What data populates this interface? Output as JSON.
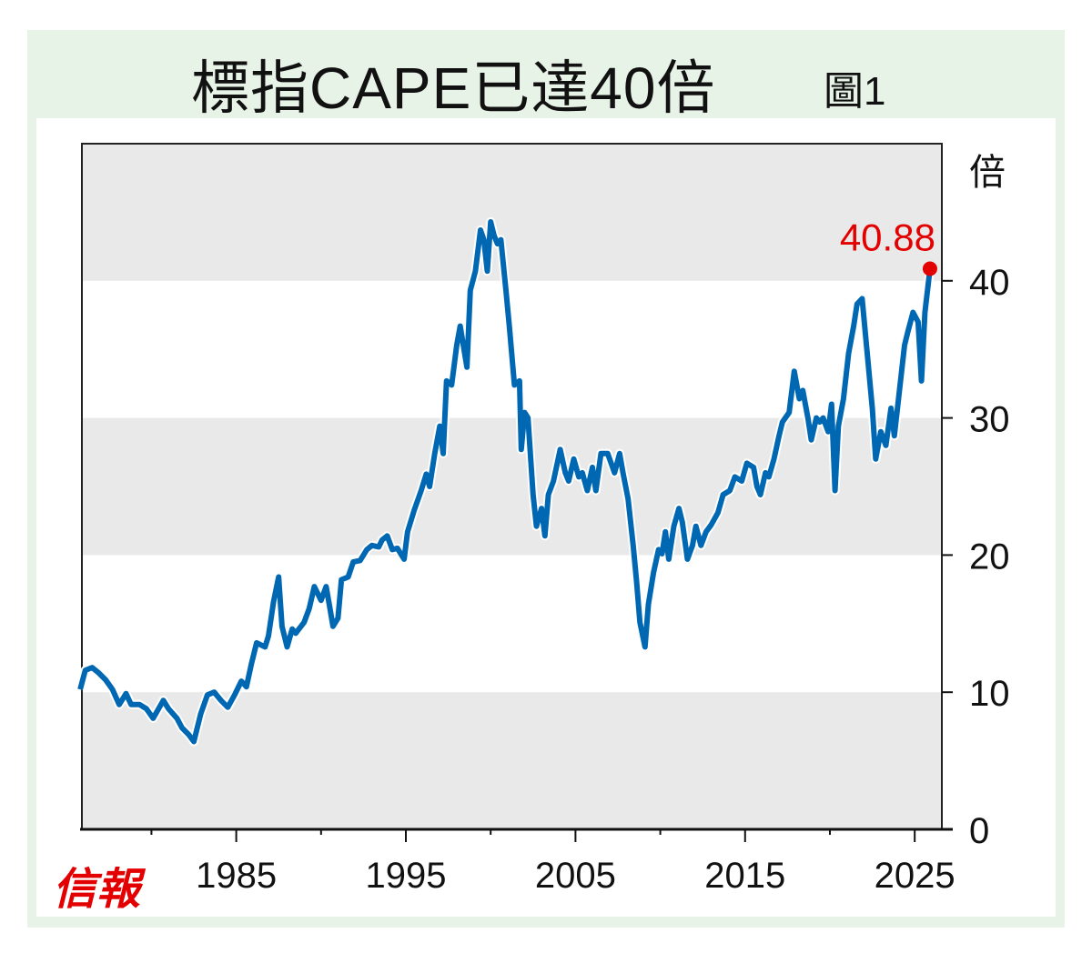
{
  "header": {
    "title": "標指CAPE已達40倍",
    "figure_label": "圖1"
  },
  "logo_text": "信報",
  "chart_data": {
    "type": "line",
    "title": "標指CAPE已達40倍",
    "ylabel": "倍",
    "xlabel": "",
    "xlim": [
      1975.9,
      2026.6
    ],
    "ylim": [
      0,
      50
    ],
    "x_ticks": [
      1985,
      1995,
      2005,
      2015,
      2025
    ],
    "x_tick_labels": [
      "1985",
      "1995",
      "2005",
      "2015",
      "2025"
    ],
    "x_minor_ticks": [
      1980,
      1990,
      2000,
      2010,
      2020
    ],
    "y_ticks": [
      0,
      10,
      20,
      30,
      40
    ],
    "y_tick_labels": [
      "0",
      "10",
      "20",
      "30",
      "40"
    ],
    "bands": [
      [
        0,
        10
      ],
      [
        20,
        30
      ],
      [
        40,
        50
      ]
    ],
    "colors": {
      "line": "#0068b3",
      "highlight": "#e30000",
      "band": "#e8e9e8"
    },
    "annotation": {
      "text": "40.88",
      "x": 2025.9,
      "y": 40.88
    },
    "series": [
      {
        "name": "CAPE",
        "x": [
          1975.8,
          1976.1,
          1976.5,
          1976.9,
          1977.3,
          1977.7,
          1978.1,
          1978.5,
          1978.8,
          1979.3,
          1979.7,
          1980.1,
          1980.7,
          1981.0,
          1981.5,
          1981.8,
          1982.2,
          1982.5,
          1982.9,
          1983.3,
          1983.7,
          1984.1,
          1984.5,
          1984.9,
          1985.3,
          1985.6,
          1985.9,
          1986.2,
          1986.7,
          1986.9,
          1987.2,
          1987.5,
          1987.7,
          1988.0,
          1988.3,
          1988.5,
          1989.0,
          1989.3,
          1989.6,
          1990.0,
          1990.3,
          1990.5,
          1990.7,
          1991.0,
          1991.2,
          1991.6,
          1991.9,
          1992.3,
          1992.7,
          1993.0,
          1993.4,
          1993.6,
          1993.9,
          1994.2,
          1994.5,
          1994.9,
          1995.1,
          1995.5,
          1995.9,
          1996.2,
          1996.4,
          1996.7,
          1997.0,
          1997.2,
          1997.4,
          1997.7,
          1998.0,
          1998.2,
          1998.6,
          1998.8,
          1999.1,
          1999.4,
          1999.6,
          1999.8,
          2000.0,
          2000.2,
          2000.4,
          2000.6,
          2000.9,
          2001.1,
          2001.4,
          2001.7,
          2001.8,
          2002.0,
          2002.2,
          2002.5,
          2002.7,
          2003.0,
          2003.2,
          2003.4,
          2003.7,
          2004.1,
          2004.4,
          2004.6,
          2004.9,
          2005.2,
          2005.4,
          2005.7,
          2006.0,
          2006.2,
          2006.5,
          2006.9,
          2007.3,
          2007.6,
          2007.8,
          2008.1,
          2008.4,
          2008.6,
          2008.8,
          2009.1,
          2009.3,
          2009.6,
          2009.9,
          2010.1,
          2010.3,
          2010.5,
          2010.8,
          2011.1,
          2011.3,
          2011.6,
          2011.9,
          2012.1,
          2012.4,
          2012.7,
          2013.0,
          2013.4,
          2013.7,
          2014.1,
          2014.4,
          2014.8,
          2015.1,
          2015.5,
          2015.7,
          2015.9,
          2016.2,
          2016.4,
          2016.7,
          2017.0,
          2017.2,
          2017.6,
          2017.9,
          2018.2,
          2018.4,
          2018.7,
          2018.9,
          2019.2,
          2019.4,
          2019.6,
          2019.9,
          2020.1,
          2020.3,
          2020.5,
          2020.8,
          2021.1,
          2021.4,
          2021.6,
          2021.9,
          2022.2,
          2022.5,
          2022.7,
          2023.0,
          2023.3,
          2023.6,
          2023.8,
          2024.1,
          2024.4,
          2024.6,
          2024.9,
          2025.2,
          2025.4,
          2025.6,
          2025.9
        ],
        "y": [
          10.2,
          11.6,
          11.8,
          11.4,
          10.9,
          10.2,
          9.1,
          9.9,
          9.1,
          9.1,
          8.8,
          8.1,
          9.4,
          8.8,
          8.1,
          7.4,
          6.9,
          6.4,
          8.4,
          9.8,
          10.0,
          9.4,
          8.9,
          9.8,
          10.8,
          10.4,
          12.1,
          13.6,
          13.3,
          14.1,
          16.6,
          18.4,
          14.8,
          13.3,
          14.6,
          14.3,
          15.1,
          16.1,
          17.7,
          16.7,
          17.7,
          16.3,
          14.8,
          15.4,
          18.2,
          18.4,
          19.5,
          19.6,
          20.4,
          20.7,
          20.6,
          21.1,
          21.4,
          20.4,
          20.5,
          19.7,
          21.7,
          23.3,
          24.7,
          25.9,
          25.0,
          27.4,
          29.4,
          27.4,
          32.7,
          32.4,
          35.3,
          36.7,
          33.7,
          39.3,
          40.7,
          43.7,
          43.0,
          40.7,
          44.3,
          43.3,
          42.7,
          43.0,
          39.3,
          36.7,
          32.4,
          32.7,
          27.7,
          30.4,
          30.0,
          24.4,
          22.1,
          23.4,
          21.4,
          24.4,
          25.4,
          27.7,
          26.0,
          25.4,
          27.0,
          25.7,
          26.0,
          24.7,
          26.4,
          24.7,
          27.4,
          27.4,
          26.0,
          27.4,
          26.0,
          24.1,
          20.7,
          18.1,
          15.1,
          13.3,
          16.4,
          18.7,
          20.4,
          20.1,
          21.7,
          19.7,
          22.1,
          23.4,
          22.4,
          19.7,
          20.7,
          22.1,
          20.7,
          21.7,
          22.2,
          23.1,
          24.4,
          24.7,
          25.7,
          25.4,
          26.7,
          26.4,
          25.0,
          24.4,
          26.0,
          25.7,
          27.0,
          28.7,
          29.7,
          30.4,
          33.4,
          31.4,
          32.0,
          30.0,
          28.4,
          30.0,
          29.7,
          30.0,
          29.0,
          31.0,
          24.7,
          29.4,
          31.4,
          34.7,
          36.7,
          38.3,
          38.7,
          34.7,
          30.7,
          27.0,
          29.0,
          28.0,
          30.7,
          28.7,
          32.0,
          35.3,
          36.3,
          37.7,
          37.0,
          32.7,
          37.7,
          40.88
        ]
      }
    ]
  }
}
